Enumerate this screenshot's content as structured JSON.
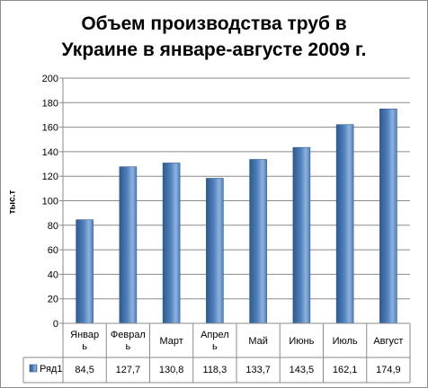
{
  "chart_data": {
    "type": "bar",
    "title_lines": [
      "Объем производства труб в",
      "Украине в январе-августе 2009 г."
    ],
    "ylabel": "тыс.т",
    "xlabel": "",
    "ylim": [
      0,
      200
    ],
    "yticks": [
      0,
      20,
      40,
      60,
      80,
      100,
      120,
      140,
      160,
      180,
      200
    ],
    "categories": [
      [
        "Январ",
        "ь"
      ],
      [
        "Феврал",
        "ь"
      ],
      [
        "Март"
      ],
      [
        "Апрел",
        "ь"
      ],
      [
        "Май"
      ],
      [
        "Июнь"
      ],
      [
        "Июль"
      ],
      [
        "Август"
      ]
    ],
    "series": [
      {
        "name": "Ряд1",
        "values": [
          84.5,
          127.7,
          130.8,
          118.3,
          133.7,
          143.5,
          162.1,
          174.9
        ],
        "value_labels": [
          "84,5",
          "127,7",
          "130,8",
          "118,3",
          "133,7",
          "143,5",
          "162,1",
          "174,9"
        ]
      }
    ],
    "grid": true,
    "legend": "data-table",
    "colors": {
      "bar_dark": "#2e5a8e",
      "bar_mid": "#4f81bd",
      "bar_light": "#8fb1dd",
      "grid": "#8a8a8a",
      "axis": "#8a8a8a"
    }
  }
}
